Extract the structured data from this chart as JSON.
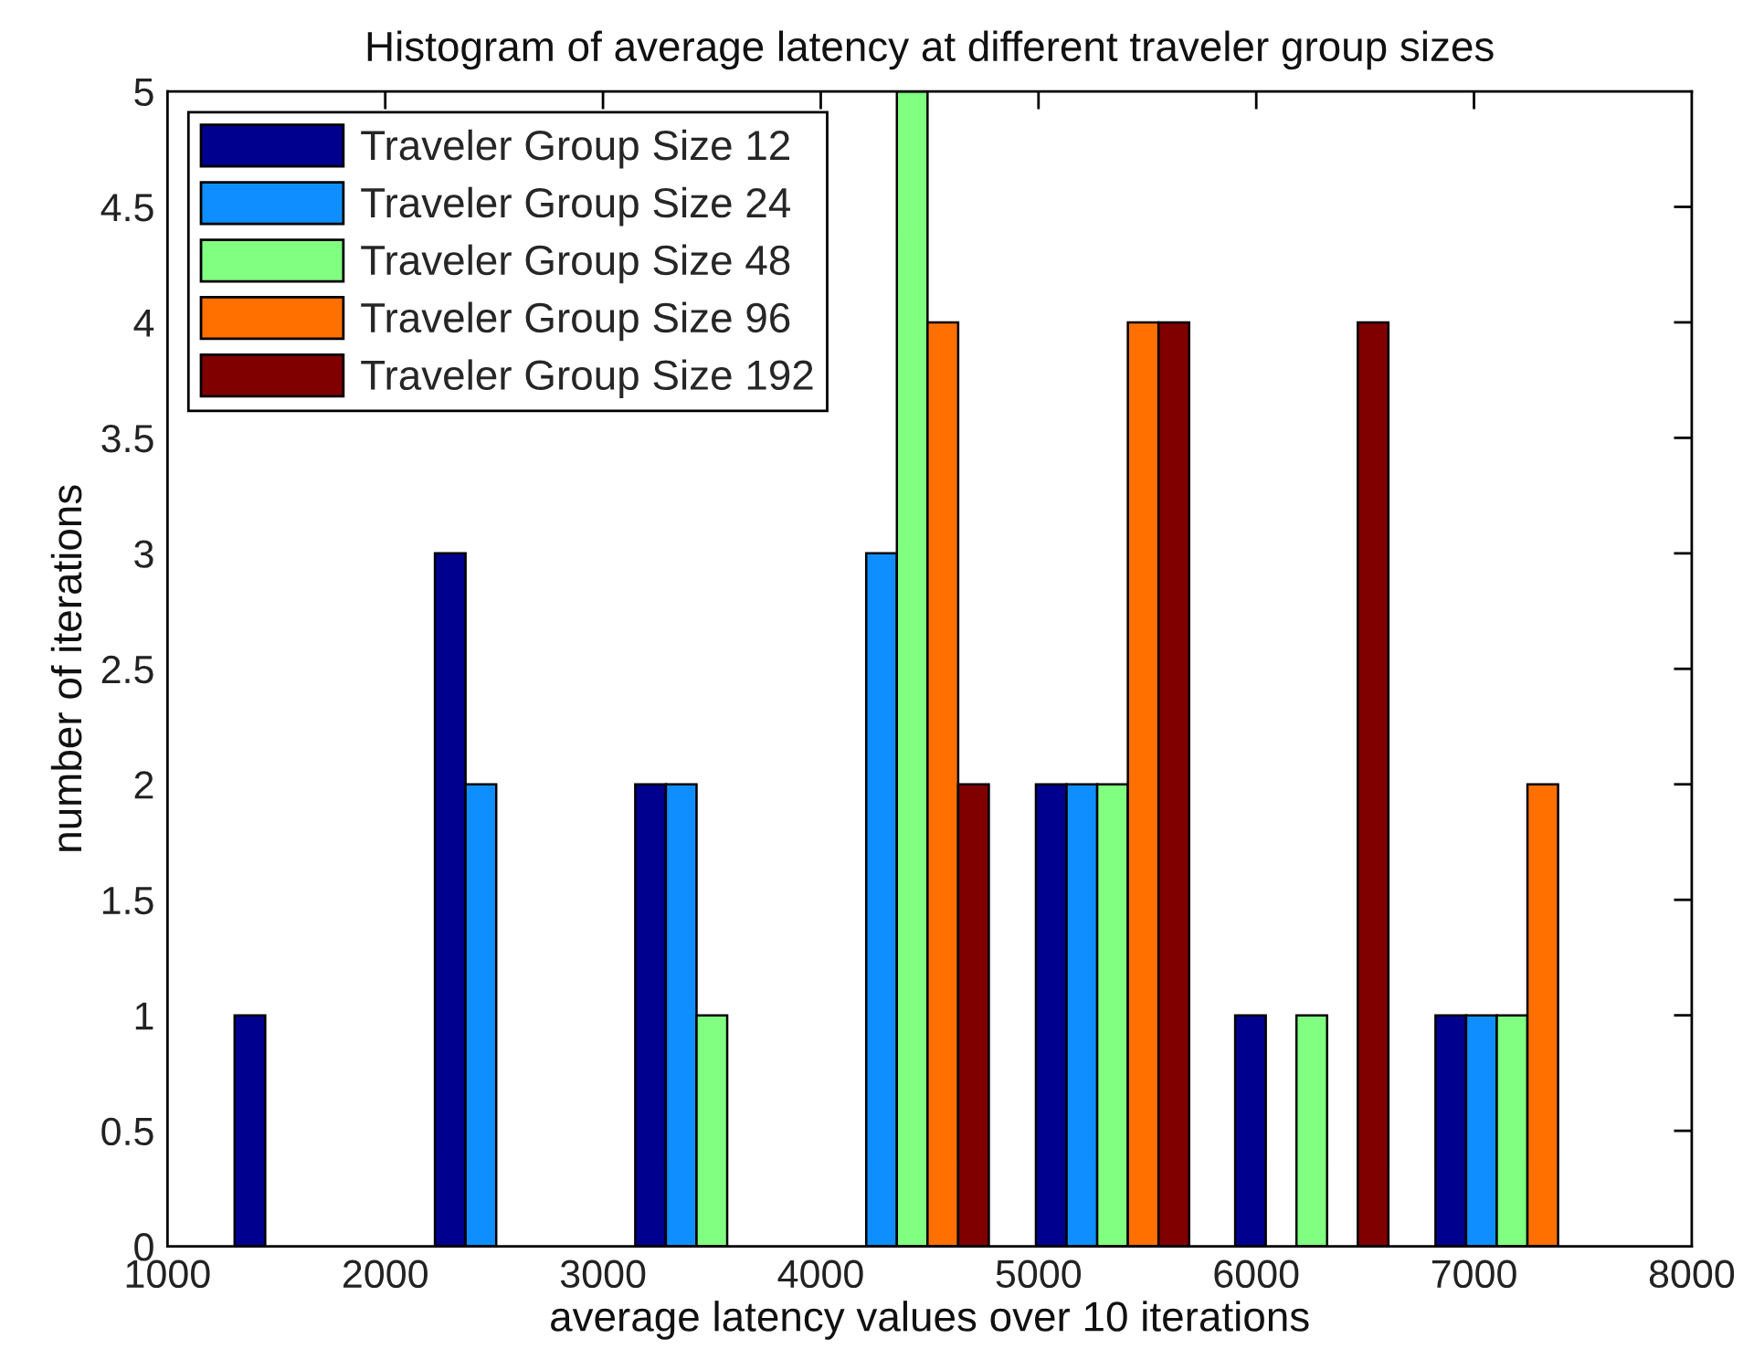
{
  "chart_data": {
    "type": "bar",
    "title": "Histogram of average latency at different traveler group sizes",
    "xlabel": "average latency values over 10 iterations",
    "ylabel": "number of iterations",
    "x": [
      1660,
      2580,
      3500,
      4420,
      5340,
      6255,
      7175
    ],
    "series": [
      {
        "name": "Traveler Group Size 12",
        "color": "#00008f",
        "values": [
          1,
          3,
          2,
          0,
          2,
          1,
          1
        ]
      },
      {
        "name": "Traveler Group Size 24",
        "color": "#0f8fff",
        "values": [
          0,
          2,
          2,
          3,
          2,
          0,
          1
        ]
      },
      {
        "name": "Traveler Group Size 48",
        "color": "#80ff80",
        "values": [
          0,
          0,
          1,
          5,
          2,
          1,
          1
        ]
      },
      {
        "name": "Traveler Group Size 96",
        "color": "#ff7000",
        "values": [
          0,
          0,
          0,
          4,
          4,
          0,
          2
        ]
      },
      {
        "name": "Traveler Group Size 192",
        "color": "#800000",
        "values": [
          0,
          0,
          0,
          2,
          4,
          4,
          0
        ]
      }
    ],
    "xlim": [
      1000,
      8000
    ],
    "xticks": [
      1000,
      2000,
      3000,
      4000,
      5000,
      6000,
      7000,
      8000
    ],
    "ylim": [
      0,
      5
    ],
    "yticks": [
      0,
      0.5,
      1,
      1.5,
      2,
      2.5,
      3,
      3.5,
      4,
      4.5,
      5
    ],
    "legend": "top left",
    "grid": false
  }
}
